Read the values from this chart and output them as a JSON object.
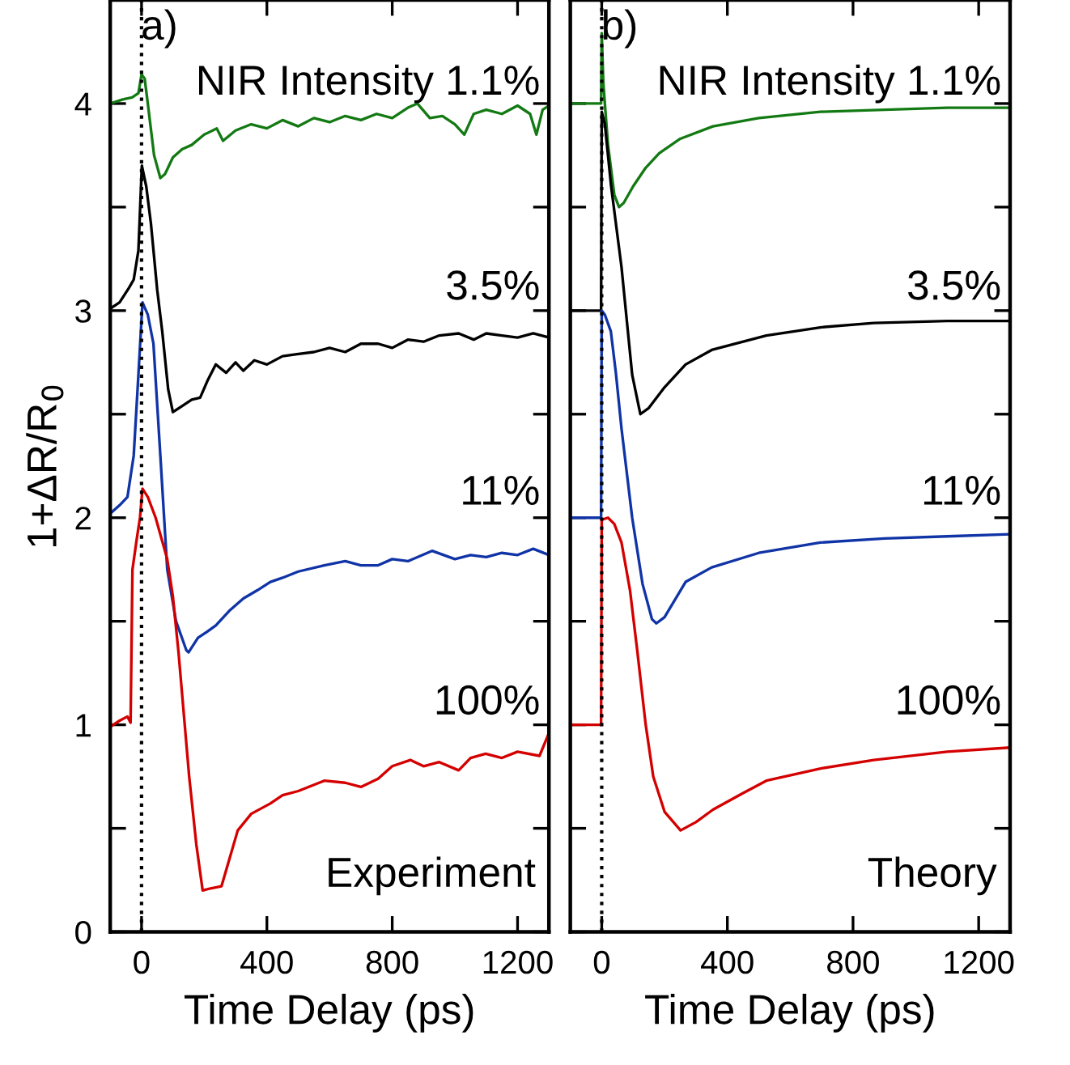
{
  "chart_data": [
    {
      "type": "line",
      "xlabel": "Time Delay (ps)",
      "ylabel": "1+ΔR/R$_{0}$",
      "xlim": [
        -100,
        1300
      ],
      "ylim": [
        0,
        4.5
      ],
      "xticks": [
        0,
        400,
        800,
        1200
      ],
      "yticks": [
        0,
        {
          "value": 0.5,
          "label": null
        },
        1,
        {
          "value": 1.5,
          "label": null
        },
        2,
        {
          "value": 2.5,
          "label": null
        },
        3,
        {
          "value": 3.5,
          "label": null
        },
        4
      ],
      "grid": false,
      "legend": false,
      "marker": "none",
      "line_style": "solid",
      "annotations": [
        "NIR Intensity 1.1%",
        "3.5%",
        "11%",
        "100%",
        "a)",
        "Experiment"
      ],
      "ref_lines": [
        {
          "axis": "x",
          "value": 0,
          "color": "#000000",
          "line_style": "dotted"
        }
      ],
      "series": [
        {
          "color": "#137a13",
          "x": [
            -100,
            -60,
            -30,
            -10,
            0,
            10,
            20,
            40,
            60,
            75,
            100,
            130,
            160,
            200,
            240,
            260,
            300,
            350,
            400,
            450,
            500,
            550,
            600,
            650,
            700,
            750,
            800,
            850,
            880,
            920,
            960,
            1000,
            1030,
            1060,
            1100,
            1150,
            1200,
            1240,
            1260,
            1280,
            1300
          ],
          "values": [
            4.0,
            4.02,
            4.03,
            4.05,
            4.14,
            4.12,
            4.0,
            3.75,
            3.64,
            3.66,
            3.74,
            3.78,
            3.8,
            3.85,
            3.88,
            3.82,
            3.87,
            3.9,
            3.88,
            3.92,
            3.89,
            3.93,
            3.91,
            3.94,
            3.92,
            3.95,
            3.93,
            3.98,
            4.0,
            3.93,
            3.94,
            3.9,
            3.85,
            3.95,
            3.97,
            3.95,
            3.99,
            3.95,
            3.85,
            3.97,
            3.99
          ]
        },
        {
          "color": "#000000",
          "x": [
            -100,
            -70,
            -40,
            -25,
            -10,
            1,
            15,
            30,
            50,
            66,
            85,
            100,
            130,
            160,
            187,
            210,
            237,
            270,
            300,
            325,
            360,
            400,
            450,
            496,
            550,
            600,
            650,
            700,
            755,
            800,
            850,
            900,
            950,
            1012,
            1060,
            1100,
            1150,
            1200,
            1250,
            1300
          ],
          "values": [
            3.01,
            3.04,
            3.11,
            3.15,
            3.29,
            3.7,
            3.6,
            3.42,
            3.1,
            2.9,
            2.62,
            2.51,
            2.54,
            2.57,
            2.58,
            2.66,
            2.74,
            2.7,
            2.75,
            2.71,
            2.76,
            2.74,
            2.78,
            2.79,
            2.8,
            2.82,
            2.8,
            2.84,
            2.84,
            2.82,
            2.86,
            2.85,
            2.88,
            2.89,
            2.86,
            2.89,
            2.88,
            2.87,
            2.89,
            2.87
          ]
        },
        {
          "color": "#1034a6",
          "x": [
            -100,
            -70,
            -45,
            -25,
            -10,
            3,
            20,
            38,
            60,
            82,
            110,
            143,
            150,
            180,
            210,
            237,
            280,
            325,
            370,
            411,
            450,
            500,
            583,
            650,
            700,
            755,
            800,
            850,
            927,
            1000,
            1050,
            1100,
            1150,
            1200,
            1250,
            1300
          ],
          "values": [
            2.02,
            2.06,
            2.1,
            2.3,
            2.69,
            3.04,
            2.98,
            2.84,
            2.3,
            1.75,
            1.5,
            1.36,
            1.35,
            1.42,
            1.45,
            1.48,
            1.55,
            1.61,
            1.65,
            1.69,
            1.71,
            1.74,
            1.77,
            1.79,
            1.77,
            1.77,
            1.8,
            1.79,
            1.84,
            1.8,
            1.82,
            1.81,
            1.83,
            1.82,
            1.85,
            1.82
          ]
        },
        {
          "color": "#d40000",
          "x": [
            -100,
            -70,
            -45,
            -35,
            -29,
            -15,
            -5,
            3,
            20,
            45,
            82,
            100,
            118,
            135,
            152,
            175,
            195,
            220,
            255,
            280,
            307,
            350,
            411,
            450,
            500,
            583,
            650,
            700,
            755,
            800,
            858,
            900,
            950,
            1012,
            1050,
            1098,
            1150,
            1200,
            1270,
            1300
          ],
          "values": [
            0.99,
            1.02,
            1.04,
            1.01,
            1.75,
            1.9,
            2.0,
            2.14,
            2.1,
            2.0,
            1.8,
            1.62,
            1.35,
            1.05,
            0.75,
            0.42,
            0.2,
            0.21,
            0.22,
            0.35,
            0.49,
            0.57,
            0.62,
            0.66,
            0.68,
            0.73,
            0.72,
            0.7,
            0.74,
            0.8,
            0.83,
            0.8,
            0.82,
            0.78,
            0.84,
            0.86,
            0.84,
            0.87,
            0.85,
            0.96
          ]
        }
      ]
    },
    {
      "type": "line",
      "xlabel": "Time Delay (ps)",
      "xlim": [
        -100,
        1300
      ],
      "ylim": [
        0,
        4.5
      ],
      "xticks": [
        0,
        400,
        800,
        1200
      ],
      "yticks": [
        {
          "value": 0,
          "label": null
        },
        {
          "value": 0.5,
          "label": null
        },
        {
          "value": 1,
          "label": null
        },
        {
          "value": 1.5,
          "label": null
        },
        {
          "value": 2,
          "label": null
        },
        {
          "value": 2.5,
          "label": null
        },
        {
          "value": 3,
          "label": null
        },
        {
          "value": 3.5,
          "label": null
        },
        {
          "value": 4,
          "label": null
        }
      ],
      "tick_labels": "x",
      "grid": false,
      "legend": false,
      "marker": "none",
      "line_style": "solid",
      "annotations": [
        "NIR Intensity 1.1%",
        "3.5%",
        "11%",
        "100%",
        "b)",
        "Theory"
      ],
      "ref_lines": [
        {
          "axis": "x",
          "value": 0,
          "color": "#000000",
          "line_style": "dotted"
        }
      ],
      "series": [
        {
          "color": "#137a13",
          "x": [
            -100,
            -2,
            0,
            5,
            20,
            40,
            55,
            70,
            100,
            140,
            183,
            250,
            354,
            500,
            696,
            900,
            1100,
            1300
          ],
          "values": [
            4.0,
            4.0,
            4.34,
            4.1,
            3.8,
            3.56,
            3.5,
            3.52,
            3.6,
            3.69,
            3.76,
            3.83,
            3.89,
            3.93,
            3.96,
            3.97,
            3.98,
            3.98
          ]
        },
        {
          "color": "#000000",
          "x": [
            -100,
            -2,
            0,
            10,
            30,
            63,
            97,
            123,
            150,
            200,
            267,
            350,
            524,
            700,
            866,
            1100,
            1300
          ],
          "values": [
            3.0,
            3.0,
            3.96,
            3.9,
            3.6,
            3.21,
            2.69,
            2.5,
            2.53,
            2.63,
            2.74,
            2.81,
            2.88,
            2.92,
            2.94,
            2.95,
            2.95
          ]
        },
        {
          "color": "#1034a6",
          "x": [
            -100,
            -2,
            0,
            10,
            29,
            45,
            63,
            97,
            130,
            160,
            174,
            200,
            267,
            350,
            500,
            696,
            900,
            1100,
            1300
          ],
          "values": [
            2.0,
            2.0,
            3.0,
            2.98,
            2.9,
            2.7,
            2.43,
            2.0,
            1.68,
            1.51,
            1.49,
            1.52,
            1.69,
            1.76,
            1.83,
            1.88,
            1.9,
            1.91,
            1.92
          ]
        },
        {
          "color": "#d40000",
          "x": [
            -100,
            -2,
            0,
            20,
            40,
            63,
            90,
            113,
            140,
            164,
            200,
            251,
            300,
            354,
            450,
            524,
            700,
            866,
            1100,
            1300
          ],
          "values": [
            1.0,
            1.0,
            1.99,
            2.0,
            1.97,
            1.88,
            1.65,
            1.36,
            1.0,
            0.75,
            0.58,
            0.49,
            0.53,
            0.59,
            0.67,
            0.73,
            0.79,
            0.83,
            0.87,
            0.89
          ]
        }
      ]
    }
  ]
}
